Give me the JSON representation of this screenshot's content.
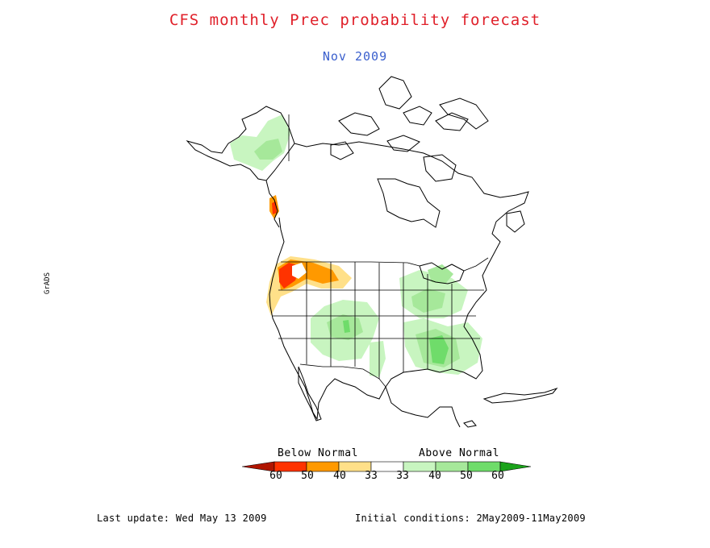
{
  "title": "CFS monthly Prec probability forecast",
  "subtitle": "Nov 2009",
  "legend": {
    "below_label": "Below Normal",
    "above_label": "Above Normal",
    "ticks": [
      "60",
      "50",
      "40",
      "33",
      "33",
      "40",
      "50",
      "60"
    ],
    "colors": {
      "below_60": "#b01500",
      "below_50": "#ff3300",
      "below_40": "#ff9900",
      "below_33": "#ffe089",
      "normal": "#ffffff",
      "above_33": "#c8f5c0",
      "above_40": "#a6e89a",
      "above_50": "#6fdc6a",
      "above_60": "#1aa31a"
    }
  },
  "side_mark": "GrADS",
  "footer": {
    "last_update": "Last update: Wed May 13 2009",
    "initial_conditions": "Initial conditions: 2May2009-11May2009"
  }
}
